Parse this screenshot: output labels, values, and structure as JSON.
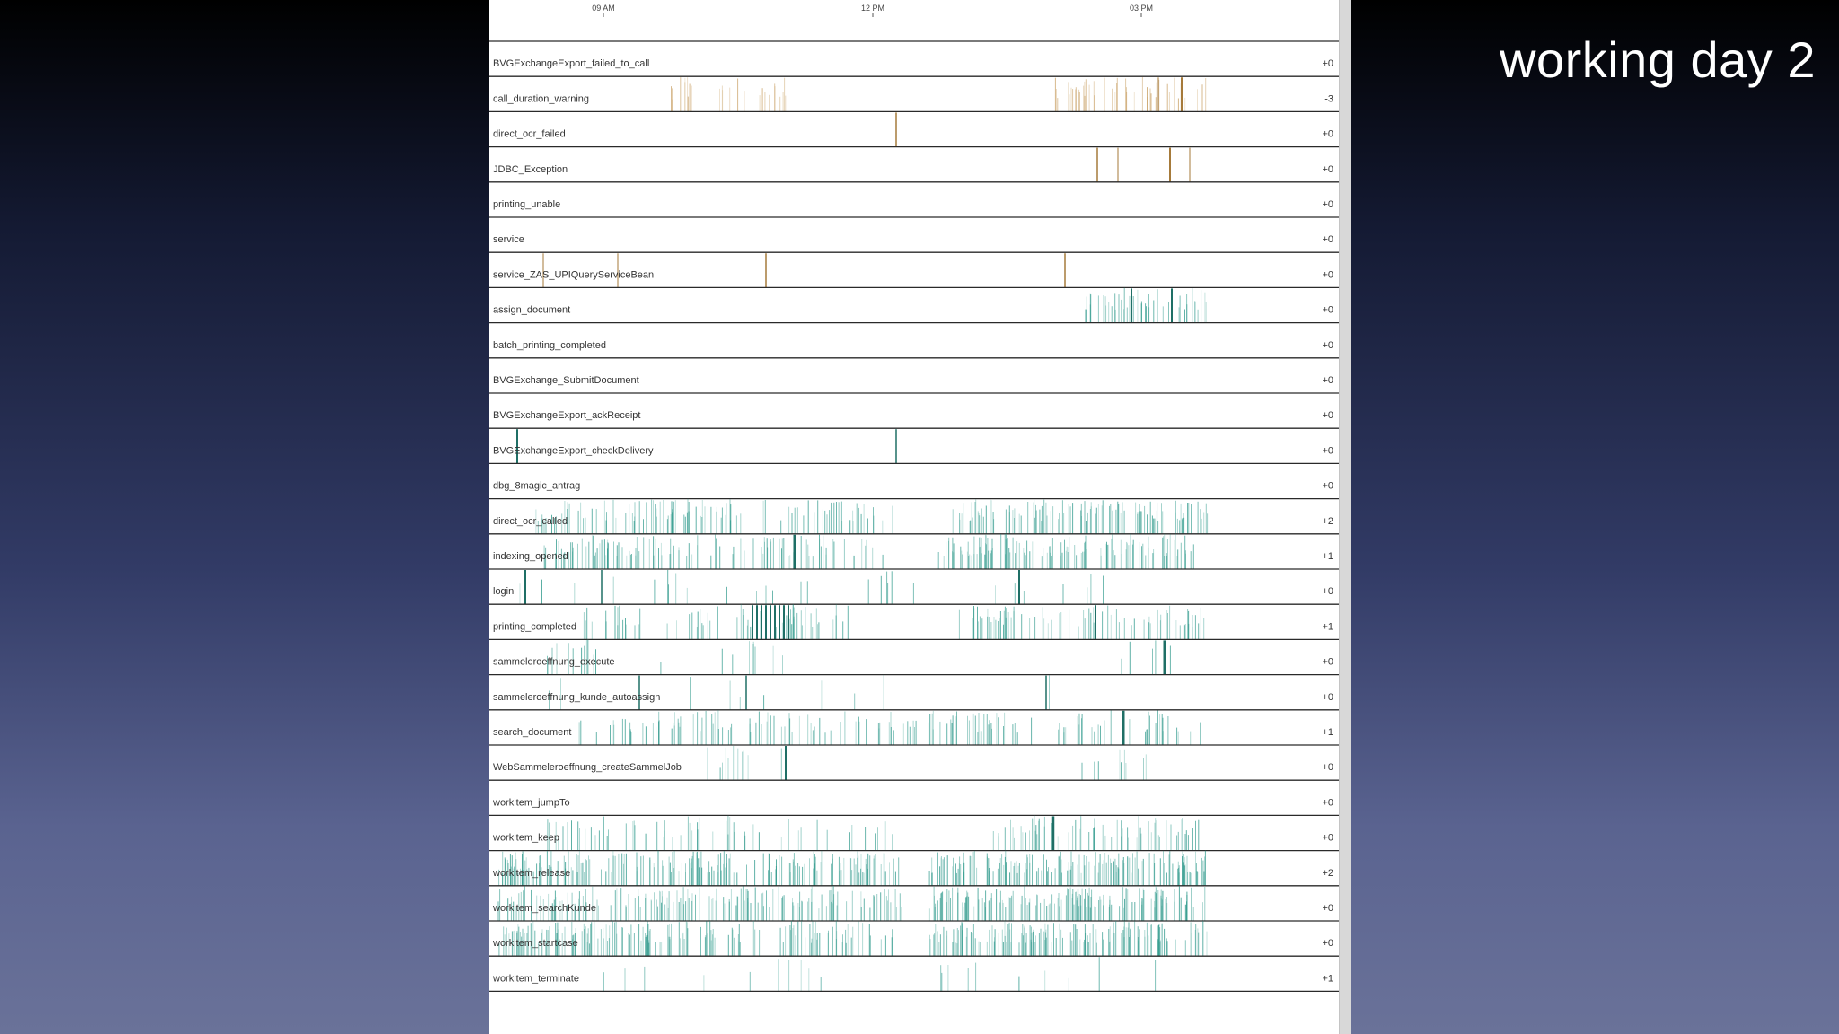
{
  "slide": {
    "title": "working day 2"
  },
  "colors": {
    "warning": "#c9a165",
    "normal": "#2f9a8c",
    "rule": "#2a2a2a"
  },
  "chart_data": {
    "type": "timeline",
    "time_ticks": [
      "09 AM",
      "12 PM",
      "03 PM"
    ],
    "rows": [
      {
        "name": "BVGExchangeExport_failed_to_call",
        "delta": "+0",
        "category": "warning"
      },
      {
        "name": "call_duration_warning",
        "delta": "-3",
        "category": "warning"
      },
      {
        "name": "direct_ocr_failed",
        "delta": "+0",
        "category": "warning"
      },
      {
        "name": "JDBC_Exception",
        "delta": "+0",
        "category": "warning"
      },
      {
        "name": "printing_unable",
        "delta": "+0",
        "category": "warning"
      },
      {
        "name": "service",
        "delta": "+0",
        "category": "warning"
      },
      {
        "name": "service_ZAS_UPIQueryServiceBean",
        "delta": "+0",
        "category": "warning"
      },
      {
        "name": "assign_document",
        "delta": "+0",
        "category": "normal"
      },
      {
        "name": "batch_printing_completed",
        "delta": "+0",
        "category": "normal"
      },
      {
        "name": "BVGExchange_SubmitDocument",
        "delta": "+0",
        "category": "normal"
      },
      {
        "name": "BVGExchangeExport_ackReceipt",
        "delta": "+0",
        "category": "normal"
      },
      {
        "name": "BVGExchangeExport_checkDelivery",
        "delta": "+0",
        "category": "normal"
      },
      {
        "name": "dbg_8magic_antrag",
        "delta": "+0",
        "category": "normal"
      },
      {
        "name": "direct_ocr_called",
        "delta": "+2",
        "category": "normal"
      },
      {
        "name": "indexing_opened",
        "delta": "+1",
        "category": "normal"
      },
      {
        "name": "login",
        "delta": "+0",
        "category": "normal"
      },
      {
        "name": "printing_completed",
        "delta": "+1",
        "category": "normal"
      },
      {
        "name": "sammeleroeffnung_execute",
        "delta": "+0",
        "category": "normal"
      },
      {
        "name": "sammeleroeffnung_kunde_autoassign",
        "delta": "+0",
        "category": "normal"
      },
      {
        "name": "search_document",
        "delta": "+1",
        "category": "normal"
      },
      {
        "name": "WebSammeleroeffnung_createSammelJob",
        "delta": "+0",
        "category": "normal"
      },
      {
        "name": "workitem_jumpTo",
        "delta": "+0",
        "category": "normal"
      },
      {
        "name": "workitem_keep",
        "delta": "+0",
        "category": "normal"
      },
      {
        "name": "workitem_release",
        "delta": "+2",
        "category": "normal"
      },
      {
        "name": "workitem_searchKunde",
        "delta": "+0",
        "category": "normal"
      },
      {
        "name": "workitem_startcase",
        "delta": "+0",
        "category": "normal"
      },
      {
        "name": "workitem_terminate",
        "delta": "+1",
        "category": "normal"
      }
    ]
  }
}
